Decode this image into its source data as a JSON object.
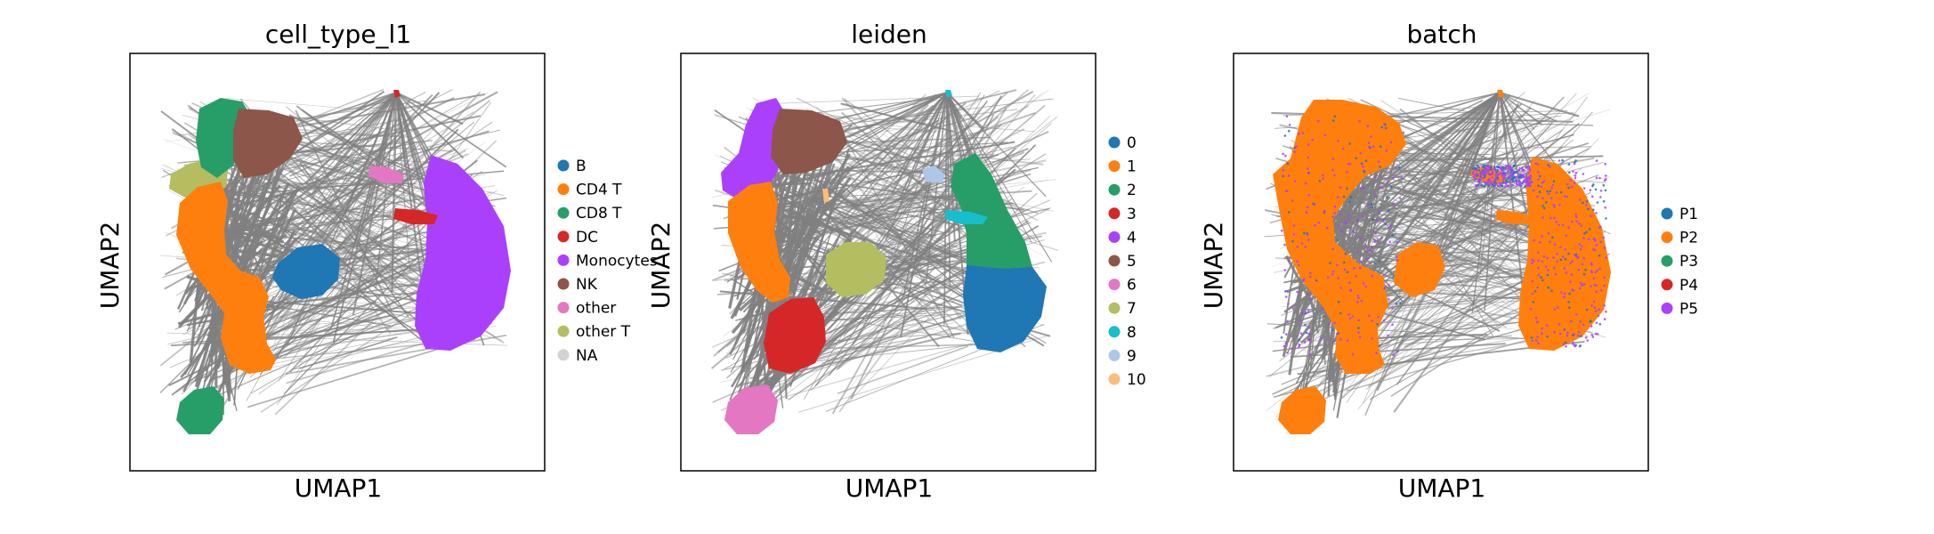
{
  "chart_data": [
    {
      "type": "scatter",
      "title": "cell_type_l1",
      "xlabel": "UMAP1",
      "ylabel": "UMAP2",
      "legend_position": "right",
      "legend": [
        {
          "label": "B",
          "color": "#1f77b4"
        },
        {
          "label": "CD4 T",
          "color": "#ff7f0e"
        },
        {
          "label": "CD8 T",
          "color": "#279e68"
        },
        {
          "label": "DC",
          "color": "#d62728"
        },
        {
          "label": "Monocytes",
          "color": "#aa40fc"
        },
        {
          "label": "NK",
          "color": "#8c564b"
        },
        {
          "label": "other",
          "color": "#e377c2"
        },
        {
          "label": "other T",
          "color": "#b5bd61"
        },
        {
          "label": "NA",
          "color": "#d3d3d3"
        }
      ]
    },
    {
      "type": "scatter",
      "title": "leiden",
      "xlabel": "UMAP1",
      "ylabel": "UMAP2",
      "legend_position": "right",
      "legend": [
        {
          "label": "0",
          "color": "#1f77b4"
        },
        {
          "label": "1",
          "color": "#ff7f0e"
        },
        {
          "label": "2",
          "color": "#279e68"
        },
        {
          "label": "3",
          "color": "#d62728"
        },
        {
          "label": "4",
          "color": "#aa40fc"
        },
        {
          "label": "5",
          "color": "#8c564b"
        },
        {
          "label": "6",
          "color": "#e377c2"
        },
        {
          "label": "7",
          "color": "#b5bd61"
        },
        {
          "label": "8",
          "color": "#17becf"
        },
        {
          "label": "9",
          "color": "#aec7e8"
        },
        {
          "label": "10",
          "color": "#ffbb78"
        }
      ]
    },
    {
      "type": "scatter",
      "title": "batch",
      "xlabel": "UMAP1",
      "ylabel": "UMAP2",
      "legend_position": "right",
      "legend": [
        {
          "label": "P1",
          "color": "#1f77b4"
        },
        {
          "label": "P2",
          "color": "#ff7f0e"
        },
        {
          "label": "P3",
          "color": "#279e68"
        },
        {
          "label": "P4",
          "color": "#d62728"
        },
        {
          "label": "P5",
          "color": "#aa40fc"
        }
      ]
    }
  ],
  "colors": {
    "paga_edges": "#808080"
  }
}
